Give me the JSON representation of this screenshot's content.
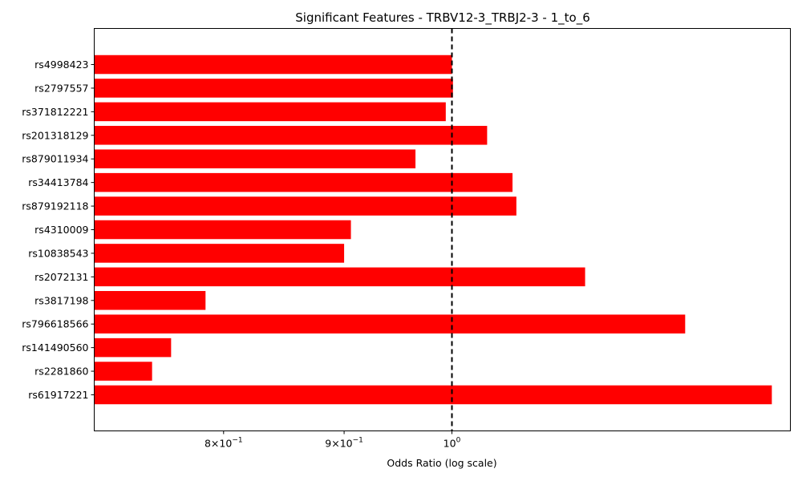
{
  "chart_data": {
    "type": "bar",
    "orientation": "horizontal",
    "title": "Significant Features - TRBV12-3_TRBJ2-3 - 1_to_6",
    "xlabel": "Odds Ratio (log scale)",
    "ylabel": "",
    "x_scale": "log",
    "xlim": [
      0.705,
      1.392
    ],
    "x_ticks": [
      {
        "value": 0.8,
        "mantissa": "8",
        "base": "10",
        "exp": "−1"
      },
      {
        "value": 0.9,
        "mantissa": "9",
        "base": "10",
        "exp": "−1"
      },
      {
        "value": 1.0,
        "mantissa": "",
        "base": "10",
        "exp": "0"
      }
    ],
    "reference_line": {
      "value": 1.0,
      "style": "dashed",
      "color": "#000000"
    },
    "bar_color": "#ff0000",
    "grid": false,
    "categories": [
      "rs4998423",
      "rs2797557",
      "rs371812221",
      "rs201318129",
      "rs879011934",
      "rs34413784",
      "rs879192118",
      "rs4310009",
      "rs10838543",
      "rs2072131",
      "rs3817198",
      "rs796618566",
      "rs141490560",
      "rs2281860",
      "rs61917221"
    ],
    "values": [
      1.0,
      1.001,
      0.994,
      1.035,
      0.965,
      1.061,
      1.065,
      0.906,
      0.9,
      1.139,
      0.786,
      1.256,
      0.76,
      0.746,
      1.367
    ]
  }
}
